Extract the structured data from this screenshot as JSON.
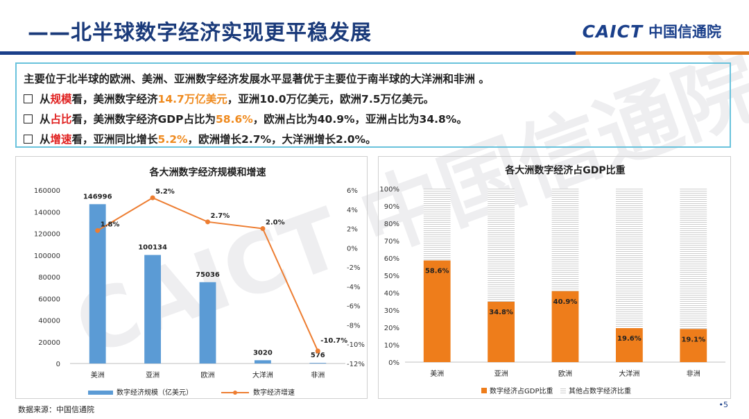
{
  "title": "——北半球数字经济实现更平稳发展",
  "logo": {
    "brand": "CAICT",
    "name_cn": "中国信通院"
  },
  "summary": {
    "line1": "主要位于北半球的欧洲、美洲、亚洲数字经济发展水平显著优于主要位于南半球的大洋洲和非洲 。",
    "line2": {
      "pre": "从",
      "key": "规模",
      "mid": "看，美洲数字经济",
      "value": "14.7万亿美元",
      "post": "，亚洲10.0万亿美元，欧洲7.5万亿美元。"
    },
    "line3": {
      "pre": "从",
      "key": "占比",
      "mid": "看，美洲数字经济GDP占比为",
      "value": "58.6%",
      "post": "，欧洲占比为40.9%，亚洲占比为34.8%。"
    },
    "line4": {
      "pre": "从",
      "key": "增速",
      "mid": "看，亚洲同比增长",
      "value": "5.2%",
      "post": "，欧洲增长2.7%，大洋洲增长2.0%。"
    }
  },
  "watermark": "CAICT 中国信通院",
  "source": "数据来源：中国信通院",
  "page_number": "•5",
  "colors": {
    "bar_blue": "#5b9bd5",
    "line_orange": "#ed7d31",
    "share_orange": "#ee7d1b",
    "brand_blue": "#1a3f8a"
  },
  "chart_data": [
    {
      "type": "bar",
      "title": "各大洲数字经济规模和增速",
      "categories": [
        "美洲",
        "亚洲",
        "欧洲",
        "大洋洲",
        "非洲"
      ],
      "series": [
        {
          "name": "数字经济规模（亿美元）",
          "type": "bar",
          "axis": "left",
          "values": [
            146996,
            100134,
            75036,
            3020,
            576
          ],
          "labels": [
            "146996",
            "100134",
            "75036",
            "3020",
            "576"
          ]
        },
        {
          "name": "数字经济增速",
          "type": "line",
          "axis": "right",
          "values": [
            1.8,
            5.2,
            2.7,
            2.0,
            -10.7
          ],
          "labels": [
            "1.8%",
            "5.2%",
            "2.7%",
            "2.0%",
            "-10.7%"
          ]
        }
      ],
      "ylim": [
        0,
        160000
      ],
      "yticks": [
        "0",
        "20000",
        "40000",
        "60000",
        "80000",
        "100000",
        "120000",
        "140000",
        "160000"
      ],
      "y2lim": [
        -12,
        6
      ],
      "y2ticks": [
        "-12%",
        "-10%",
        "-8%",
        "-6%",
        "-4%",
        "-2%",
        "0%",
        "2%",
        "4%",
        "6%"
      ],
      "legend": "bottom"
    },
    {
      "type": "bar",
      "stacked": true,
      "title": "各大洲数字经济占GDP比重",
      "categories": [
        "美洲",
        "亚洲",
        "欧洲",
        "大洋洲",
        "非洲"
      ],
      "series": [
        {
          "name": "数字经济占GDP比重",
          "values": [
            58.6,
            34.8,
            40.9,
            19.6,
            19.1
          ],
          "labels": [
            "58.6%",
            "34.8%",
            "40.9%",
            "19.6%",
            "19.1%"
          ]
        },
        {
          "name": "其他占数字经济比重",
          "values": [
            41.4,
            65.2,
            59.1,
            80.4,
            80.9
          ]
        }
      ],
      "ylim": [
        0,
        100
      ],
      "yticks": [
        "0%",
        "10%",
        "20%",
        "30%",
        "40%",
        "50%",
        "60%",
        "70%",
        "80%",
        "90%",
        "100%"
      ],
      "legend": "bottom"
    }
  ]
}
